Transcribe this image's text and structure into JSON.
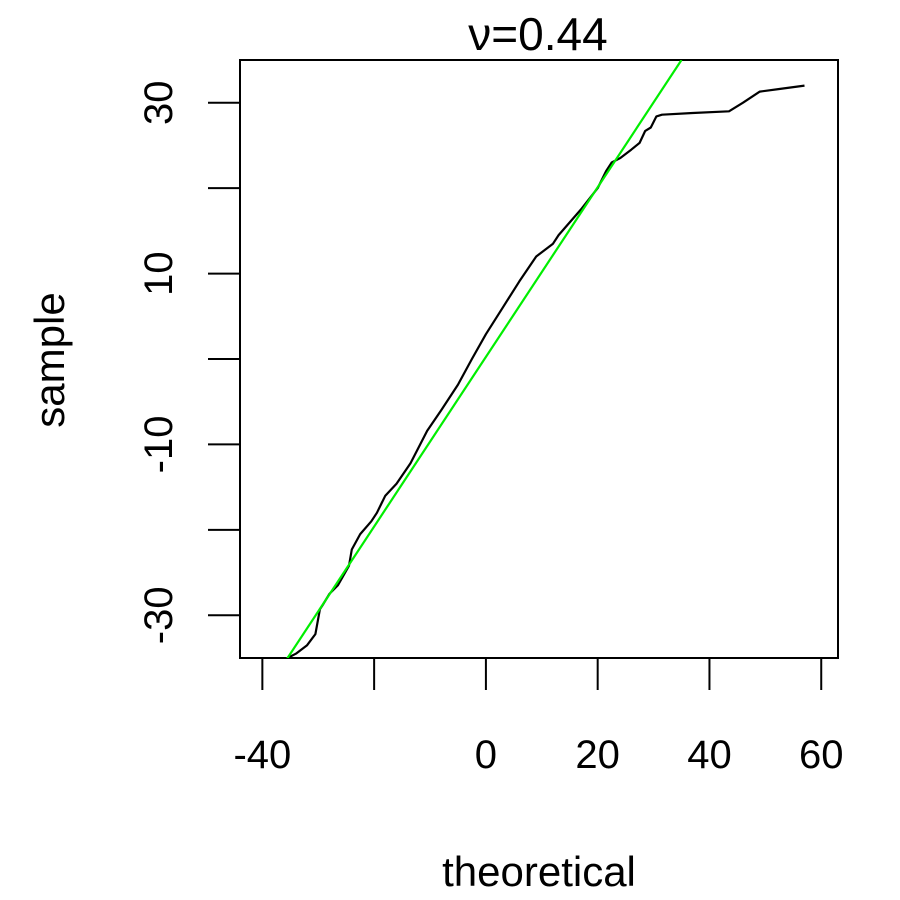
{
  "chart_data": {
    "type": "line",
    "title": "ν=0.44",
    "xlabel": "theoretical",
    "ylabel": "sample",
    "xlim": [
      -44,
      63
    ],
    "ylim": [
      -35,
      35
    ],
    "x_ticks": [
      -40,
      -20,
      0,
      20,
      40,
      60
    ],
    "x_tick_labels": [
      "-40",
      "",
      "0",
      "20",
      "40",
      "60"
    ],
    "y_ticks": [
      -30,
      -20,
      -10,
      0,
      10,
      20,
      30
    ],
    "y_tick_labels": [
      "-30",
      "",
      "-10",
      "",
      "10",
      "",
      "30"
    ],
    "grid": false,
    "legend": "none",
    "series": [
      {
        "color": "#000000",
        "kind": "qq-sample",
        "x": [
          -35.5,
          -34,
          -32,
          -30.5,
          -29.7,
          -29.2,
          -28,
          -26.5,
          -24.5,
          -24,
          -22.5,
          -20.5,
          -19.5,
          -18,
          -16,
          -13.5,
          -10.5,
          -8,
          -5,
          -2.5,
          0,
          3,
          6,
          9,
          12,
          13,
          17,
          20,
          21.5,
          22.5,
          24,
          26,
          27.5,
          28.5,
          29.5,
          30.5,
          31.5,
          37,
          43.5,
          46,
          49,
          52.5,
          57
        ],
        "y": [
          -35,
          -34.5,
          -33.5,
          -32.2,
          -29.3,
          -28.8,
          -27.5,
          -26.5,
          -24.2,
          -22.3,
          -20.5,
          -19,
          -18,
          -16,
          -14.6,
          -12.2,
          -8.4,
          -6,
          -3,
          0,
          2.9,
          6,
          9.1,
          12,
          13.5,
          14.5,
          17.5,
          20,
          22,
          23,
          23.5,
          24.5,
          25.3,
          26.7,
          27.1,
          28.4,
          28.6,
          28.8,
          29,
          30,
          31.3,
          31.6,
          32
        ]
      },
      {
        "color": "#00ee00",
        "kind": "reference-line",
        "x": [
          -36,
          35
        ],
        "y": [
          -35.5,
          35
        ]
      }
    ]
  }
}
